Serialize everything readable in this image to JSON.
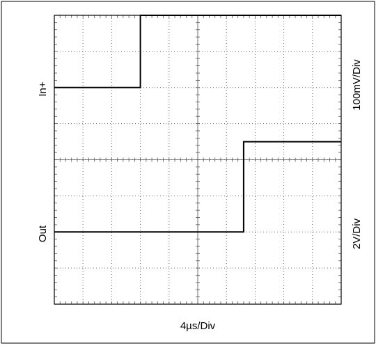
{
  "chart_data": {
    "type": "line",
    "title": "",
    "xlabel": "4µs/Div",
    "grid": true,
    "x_divisions": 10,
    "y_divisions": 8,
    "xlim": [
      0,
      10
    ],
    "ylim": [
      0,
      8
    ],
    "series": [
      {
        "name": "In+",
        "scale_label": "100mV/Div",
        "x": [
          0,
          3,
          3,
          10
        ],
        "y": [
          6,
          6,
          8,
          8
        ]
      },
      {
        "name": "Out",
        "scale_label": "2V/Div",
        "x": [
          0,
          6.6,
          6.6,
          10
        ],
        "y": [
          2,
          2,
          4.5,
          4.5
        ]
      }
    ]
  }
}
